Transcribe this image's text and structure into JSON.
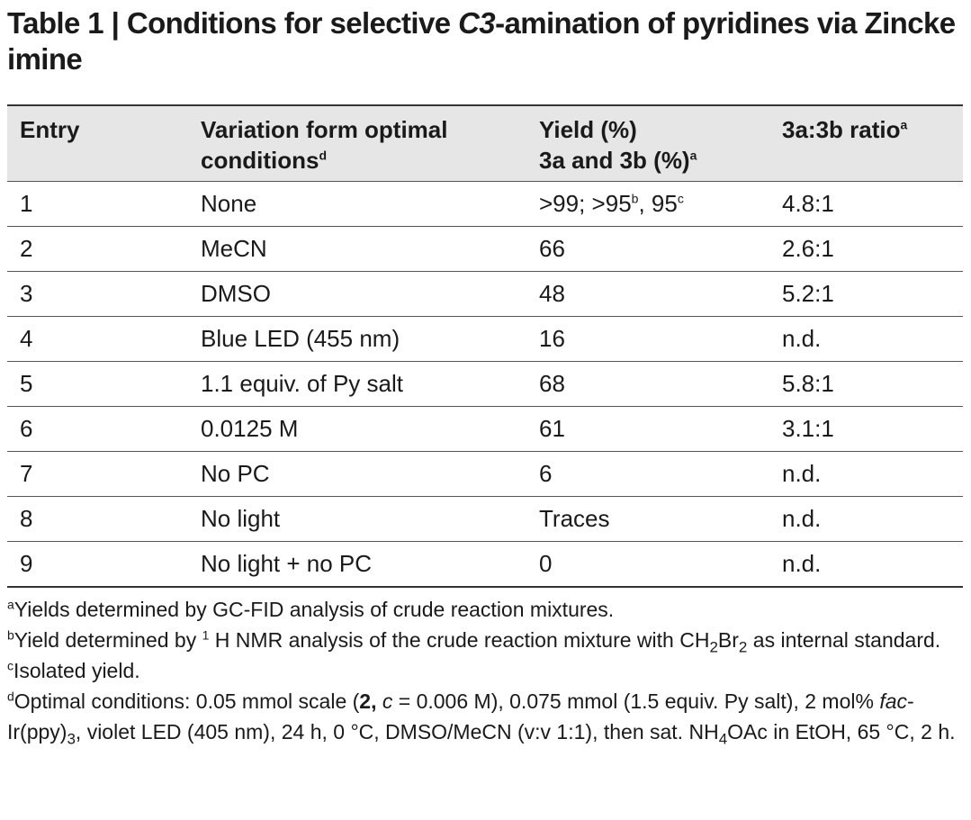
{
  "title": {
    "prefix": "Table 1 | Conditions for selective ",
    "italic": "C3",
    "suffix": "-amination of pyridines via Zincke imine"
  },
  "table": {
    "headers": {
      "entry": "Entry",
      "variation": "Variation form optimal conditions",
      "variation_sup": "d",
      "yield_line1": "Yield (%)",
      "yield_line2": "3a and 3b (%)",
      "yield_sup": "a",
      "ratio": "3a:3b ratio",
      "ratio_sup": "a"
    },
    "rows": [
      {
        "entry": "1",
        "variation": "None",
        "yield": ">99; >95",
        "yield_sup_b": "b",
        "yield_mid": ", 95",
        "yield_sup_c": "c",
        "ratio": "4.8:1"
      },
      {
        "entry": "2",
        "variation": "MeCN",
        "yield": "66",
        "ratio": "2.6:1"
      },
      {
        "entry": "3",
        "variation": "DMSO",
        "yield": "48",
        "ratio": "5.2:1"
      },
      {
        "entry": "4",
        "variation": "Blue LED (455 nm)",
        "yield": "16",
        "ratio": "n.d."
      },
      {
        "entry": "5",
        "variation": "1.1 equiv. of Py salt",
        "yield": "68",
        "ratio": "5.8:1"
      },
      {
        "entry": "6",
        "variation": "0.0125 M",
        "yield": "61",
        "ratio": "3.1:1"
      },
      {
        "entry": "7",
        "variation": "No PC",
        "yield": "6",
        "ratio": "n.d."
      },
      {
        "entry": "8",
        "variation": "No light",
        "yield": "Traces",
        "ratio": "n.d."
      },
      {
        "entry": "9",
        "variation": "No light + no PC",
        "yield": "0",
        "ratio": "n.d."
      }
    ]
  },
  "footnotes": {
    "a": {
      "mark": "a",
      "text": "Yields determined by GC-FID analysis of crude reaction mixtures."
    },
    "b": {
      "mark": "b",
      "t1": "Yield determined by ",
      "sup1": "1",
      "t2": " H NMR analysis of the crude reaction mixture with CH",
      "sub1": "2",
      "t3": "Br",
      "sub2": "2",
      "t4": " as internal standard."
    },
    "c": {
      "mark": "c",
      "text": "Isolated yield."
    },
    "d": {
      "mark": "d",
      "t1": "Optimal conditions: 0.05 mmol scale (",
      "bold": "2,",
      "t2": " ",
      "italic_c": "c",
      "t3": " = 0.006 M), 0.075 mmol (1.5 equiv. Py salt), 2 mol% ",
      "italic_fac": "fac",
      "t4": "-Ir(ppy)",
      "sub": "3",
      "t5": ", violet LED (405 nm), 24 h, 0 °C, DMSO/MeCN (v:v 1:1), then sat. NH",
      "sub2": "4",
      "t6": "OAc in EtOH, 65 °C, 2 h."
    }
  }
}
